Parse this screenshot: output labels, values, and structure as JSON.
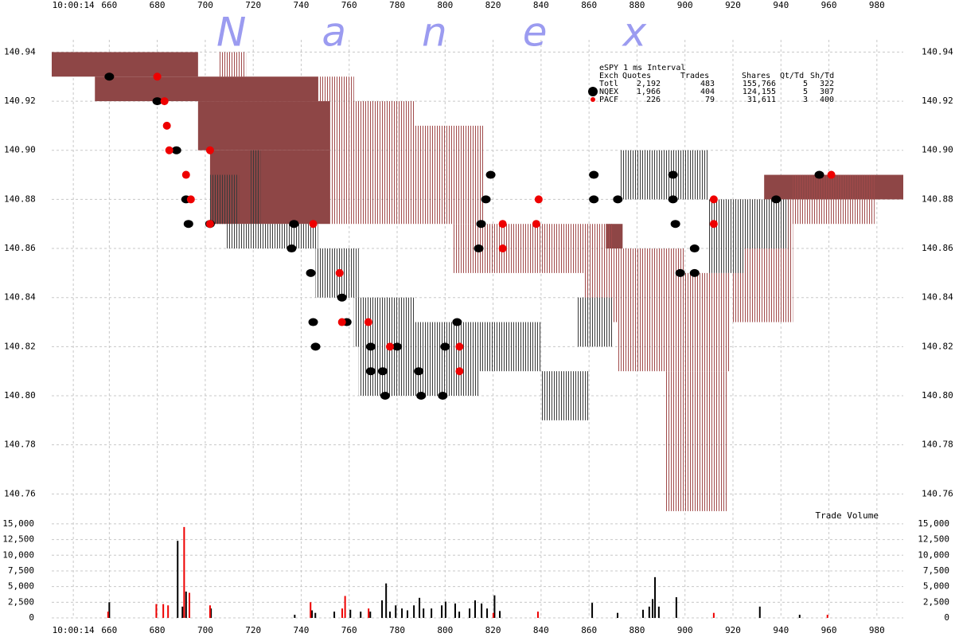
{
  "chart_data": {
    "type": "tick-chart",
    "watermark": "Nanex",
    "xlim": [
      636,
      991
    ],
    "xticks": [
      {
        "value": 645,
        "label": "10:00:14"
      },
      660,
      680,
      700,
      720,
      740,
      760,
      780,
      800,
      820,
      840,
      860,
      880,
      900,
      920,
      940,
      960,
      980
    ],
    "ylim": [
      140.752,
      140.945
    ],
    "yticks": [
      140.76,
      140.78,
      {
        "value": 140.8,
        "label": "140.80"
      },
      140.82,
      140.84,
      140.86,
      140.88,
      {
        "value": 140.9,
        "label": "140.90"
      },
      140.92,
      140.94
    ],
    "grid": true,
    "stats": {
      "title": "eSPY 1 ms Interval",
      "header": [
        "Exch",
        "Quotes",
        "Trades",
        "Shares",
        "Qt/Td",
        "Sh/Td"
      ],
      "rows": [
        [
          "Totl",
          "2,192",
          "483",
          "155,766",
          "5",
          "322"
        ],
        [
          "NQEX",
          "1,966",
          "404",
          "124,155",
          "5",
          "307"
        ],
        [
          "PACF",
          "226",
          "79",
          "31,611",
          "3",
          "400"
        ]
      ]
    },
    "quote_areas": [
      {
        "color": "#8e4646",
        "pattern": "solid",
        "boxes": [
          [
            636,
            697,
            140.93,
            140.94
          ],
          [
            654,
            747,
            140.92,
            140.93
          ],
          [
            697,
            752,
            140.9,
            140.92
          ],
          [
            702,
            752,
            140.87,
            140.9
          ],
          [
            933,
            991,
            140.88,
            140.89
          ],
          [
            867,
            874,
            140.86,
            140.87
          ]
        ]
      },
      {
        "color": "#a04a4a",
        "pattern": "stripes",
        "boxes": [
          [
            706,
            717,
            140.93,
            140.94
          ],
          [
            747,
            762,
            140.92,
            140.93
          ],
          [
            752,
            787,
            140.87,
            140.92
          ],
          [
            787,
            816,
            140.87,
            140.91
          ],
          [
            803,
            870,
            140.85,
            140.87
          ],
          [
            858,
            900,
            140.83,
            140.86
          ],
          [
            872,
            919,
            140.81,
            140.85
          ],
          [
            892,
            918,
            140.753,
            140.81
          ],
          [
            920,
            945,
            140.83,
            140.88
          ],
          [
            945,
            979,
            140.87,
            140.89
          ]
        ]
      },
      {
        "color": "#3a3a3a",
        "pattern": "stripes",
        "boxes": [
          [
            702,
            714,
            140.87,
            140.89
          ],
          [
            709,
            747,
            140.86,
            140.87
          ],
          [
            719,
            723,
            140.87,
            140.9
          ],
          [
            746,
            764,
            140.84,
            140.86
          ],
          [
            762,
            787,
            140.82,
            140.84
          ],
          [
            764,
            814,
            140.8,
            140.83
          ],
          [
            807,
            840,
            140.81,
            140.83
          ],
          [
            840,
            860,
            140.79,
            140.81
          ],
          [
            855,
            870,
            140.82,
            140.84
          ],
          [
            873,
            910,
            140.88,
            140.9
          ],
          [
            910,
            925,
            140.85,
            140.88
          ],
          [
            923,
            943,
            140.86,
            140.88
          ]
        ]
      }
    ],
    "trades": [
      {
        "color": "#000000",
        "x": [
          660,
          680,
          688,
          692,
          693,
          702,
          737,
          736,
          744,
          745,
          746,
          757,
          759,
          769,
          769,
          774,
          775,
          780,
          789,
          790,
          799,
          800,
          805,
          814,
          815,
          817,
          819,
          862,
          862,
          872,
          895,
          895,
          896,
          898,
          904,
          904,
          938,
          956
        ],
        "values": [
          140.93,
          140.92,
          140.9,
          140.88,
          140.87,
          140.87,
          140.87,
          140.86,
          140.85,
          140.83,
          140.82,
          140.84,
          140.83,
          140.82,
          140.81,
          140.81,
          140.8,
          140.82,
          140.81,
          140.8,
          140.8,
          140.82,
          140.83,
          140.86,
          140.87,
          140.88,
          140.89,
          140.88,
          140.89,
          140.88,
          140.88,
          140.89,
          140.87,
          140.85,
          140.85,
          140.86,
          140.88,
          140.89
        ]
      },
      {
        "color": "#ee0000",
        "x": [
          680,
          683,
          684,
          685,
          692,
          694,
          702,
          702,
          745,
          756,
          757,
          768,
          777,
          806,
          806,
          824,
          824,
          839,
          838,
          912,
          912,
          961
        ],
        "values": [
          140.93,
          140.92,
          140.91,
          140.9,
          140.89,
          140.88,
          140.87,
          140.9,
          140.87,
          140.85,
          140.83,
          140.83,
          140.82,
          140.82,
          140.81,
          140.87,
          140.86,
          140.88,
          140.87,
          140.88,
          140.87,
          140.89
        ]
      }
    ],
    "volume": {
      "label": "Trade Volume",
      "ylim": [
        0,
        15500
      ],
      "yticks": [
        0,
        {
          "value": 2500,
          "label": "2,500"
        },
        {
          "value": 5000,
          "label": "5,000"
        },
        {
          "value": 7500,
          "label": "7,500"
        },
        {
          "value": 10000,
          "label": "10,000"
        },
        {
          "value": 12500,
          "label": "12,500"
        },
        {
          "value": 15000,
          "label": "15,000"
        }
      ],
      "series": [
        {
          "color": "#000000",
          "x": [
            660,
            688.5,
            690.5,
            692,
            702.4,
            737.3,
            744.5,
            745.9,
            753.8,
            760.5,
            764.8,
            768.8,
            773.7,
            775.4,
            777,
            779.4,
            782,
            784.3,
            787,
            789.3,
            791,
            794.3,
            798.6,
            800.2,
            804.2,
            805.9,
            810.2,
            812.5,
            815.2,
            817.5,
            820.6,
            822.8,
            861.3,
            871.9,
            882.5,
            885.1,
            886.5,
            887.5,
            889.1,
            896.4,
            931.2,
            947.8
          ],
          "values": [
            2500,
            12300,
            1800,
            4200,
            1500,
            500,
            1200,
            800,
            1000,
            1300,
            1000,
            1000,
            2800,
            5500,
            1000,
            2000,
            1500,
            1200,
            2000,
            3200,
            1500,
            1500,
            2000,
            2600,
            2300,
            1000,
            1500,
            2800,
            2300,
            1500,
            3600,
            1100,
            2400,
            800,
            1300,
            1800,
            3000,
            6500,
            1800,
            3300,
            1800,
            500
          ]
        },
        {
          "color": "#ee0000",
          "x": [
            659.5,
            679.6,
            682.5,
            684.5,
            691.2,
            693.4,
            702,
            743.9,
            757.1,
            758.3,
            768.1,
            820.1,
            838.7,
            912,
            959.4
          ],
          "values": [
            1000,
            2200,
            2200,
            2000,
            14500,
            4000,
            2000,
            2500,
            1500,
            3500,
            1500,
            800,
            1000,
            800,
            500
          ]
        }
      ]
    }
  }
}
